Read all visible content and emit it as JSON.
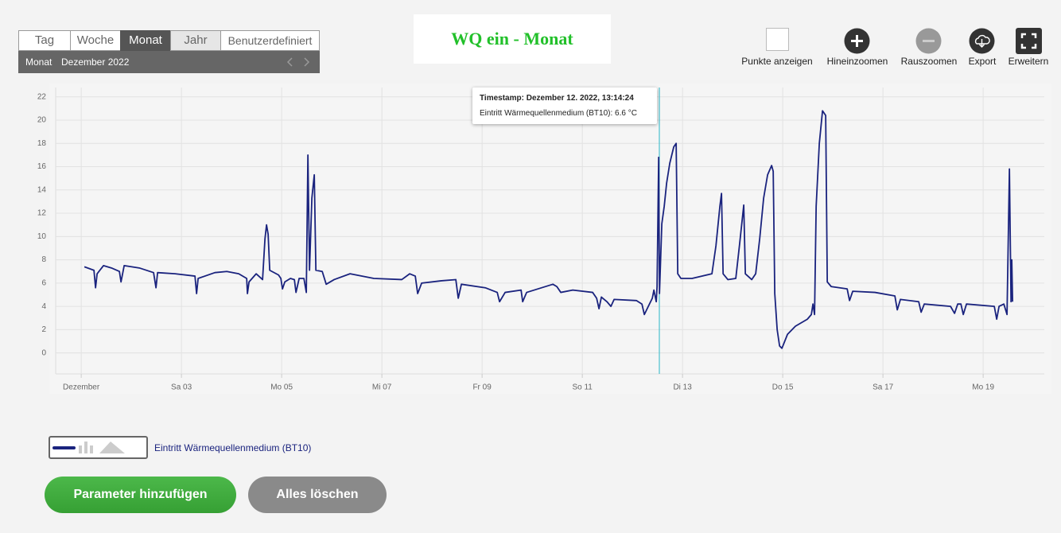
{
  "tabs": [
    "Tag",
    "Woche",
    "Monat",
    "Jahr",
    "Benutzerdefiniert"
  ],
  "period": {
    "label": "Monat",
    "value": "Dezember 2022"
  },
  "title": "WQ ein - Monat",
  "toolbar": [
    "Punkte anzeigen",
    "Hineinzoomen",
    "Rauszoomen",
    "Export",
    "Erweitern"
  ],
  "tooltip": {
    "title": "Timestamp: Dezember 12. 2022, 13:14:24",
    "text": "Eintritt Wärmequellenmedium (BT10): 6.6 °C"
  },
  "buttons": [
    "Parameter hinzufügen",
    "Alles löschen"
  ],
  "chart_data": {
    "type": "line",
    "grid": true,
    "xlim": [
      0.49,
      20.22
    ],
    "ylim": [
      -1.8,
      22.8
    ],
    "xticks": [
      {
        "value": 1,
        "label": "Dezember"
      },
      {
        "value": 3,
        "label": "Sa 03"
      },
      {
        "value": 5,
        "label": "Mo 05"
      },
      {
        "value": 7,
        "label": "Mi 07"
      },
      {
        "value": 9,
        "label": "Fr 09"
      },
      {
        "value": 11,
        "label": "So 11"
      },
      {
        "value": 13,
        "label": "Di 13"
      },
      {
        "value": 15,
        "label": "Do 15"
      },
      {
        "value": 17,
        "label": "Sa 17"
      },
      {
        "value": 19,
        "label": "Mo 19"
      }
    ],
    "yticks": [
      0,
      2,
      4,
      6,
      8,
      10,
      12,
      14,
      16,
      18,
      20,
      22
    ],
    "x": [
      1.063,
      1.254,
      1.286,
      1.317,
      1.444,
      1.603,
      1.762,
      1.794,
      1.857,
      2.159,
      2.444,
      2.492,
      2.524,
      2.873,
      3.27,
      3.302,
      3.333,
      3.667,
      3.905,
      4.143,
      4.302,
      4.317,
      4.349,
      4.492,
      4.619,
      4.667,
      4.698,
      4.73,
      4.762,
      4.937,
      4.984,
      5.016,
      5.063,
      5.175,
      5.254,
      5.286,
      5.349,
      5.444,
      5.492,
      5.524,
      5.556,
      5.603,
      5.651,
      5.683,
      5.81,
      5.889,
      6.048,
      6.365,
      6.841,
      7.397,
      7.556,
      7.667,
      7.714,
      7.794,
      8.19,
      8.476,
      8.524,
      8.587,
      9.063,
      9.302,
      9.349,
      9.46,
      9.778,
      9.81,
      9.889,
      10.413,
      10.492,
      10.571,
      10.81,
      11.206,
      11.286,
      11.333,
      11.381,
      11.492,
      11.571,
      11.635,
      12.079,
      12.19,
      12.238,
      12.317,
      12.397,
      12.429,
      12.476,
      12.492,
      12.524,
      12.54,
      12.587,
      12.635,
      12.683,
      12.746,
      12.825,
      12.873,
      12.905,
      12.968,
      13.19,
      13.587,
      13.667,
      13.746,
      13.778,
      13.81,
      13.905,
      14.063,
      14.143,
      14.222,
      14.254,
      14.381,
      14.46,
      14.54,
      14.619,
      14.698,
      14.778,
      14.81,
      14.841,
      14.889,
      14.937,
      14.984,
      15.095,
      15.254,
      15.492,
      15.571,
      15.603,
      15.635,
      15.667,
      15.73,
      15.794,
      15.857,
      15.889,
      15.968,
      16.286,
      16.333,
      16.397,
      16.841,
      17.238,
      17.286,
      17.349,
      17.714,
      17.762,
      17.825,
      18.349,
      18.429,
      18.492,
      18.556,
      18.603,
      18.667,
      19.222,
      19.27,
      19.317,
      19.413,
      19.476,
      19.524,
      19.556,
      19.571,
      19.587
    ],
    "series": [
      {
        "name": "Eintritt Wärmequellenmedium (BT10)",
        "color": "#1a237e",
        "values": [
          7.4,
          7.1,
          5.6,
          6.8,
          7.5,
          7.3,
          7.0,
          6.1,
          7.5,
          7.3,
          6.9,
          5.6,
          6.9,
          6.8,
          6.6,
          5.1,
          6.4,
          6.9,
          7.0,
          6.8,
          6.4,
          5.1,
          6.1,
          6.8,
          6.3,
          9.8,
          11.0,
          10.2,
          7.1,
          6.7,
          6.4,
          5.5,
          6.1,
          6.4,
          6.3,
          5.2,
          6.4,
          6.4,
          5.2,
          17.0,
          7.1,
          13.3,
          15.3,
          7.1,
          7.0,
          5.9,
          6.3,
          6.8,
          6.4,
          6.3,
          6.8,
          6.6,
          5.1,
          6.0,
          6.2,
          6.3,
          4.7,
          5.9,
          5.6,
          5.2,
          4.4,
          5.2,
          5.4,
          4.4,
          5.2,
          5.9,
          5.7,
          5.2,
          5.4,
          5.2,
          4.7,
          3.8,
          4.8,
          4.4,
          4.0,
          4.6,
          4.5,
          4.2,
          3.3,
          4.0,
          4.7,
          5.4,
          4.4,
          5.7,
          16.8,
          5.1,
          11.1,
          12.6,
          14.6,
          16.3,
          17.7,
          18.0,
          6.8,
          6.4,
          6.4,
          6.8,
          9.2,
          12.6,
          13.7,
          6.8,
          6.3,
          6.4,
          9.5,
          12.7,
          6.8,
          6.3,
          6.8,
          9.8,
          13.3,
          15.3,
          16.1,
          15.6,
          5.1,
          2.0,
          0.6,
          0.4,
          1.6,
          2.3,
          2.9,
          3.3,
          4.2,
          3.3,
          12.6,
          18.0,
          20.8,
          20.4,
          6.1,
          5.7,
          5.5,
          4.5,
          5.3,
          5.2,
          4.9,
          3.7,
          4.6,
          4.4,
          3.5,
          4.2,
          4.0,
          3.4,
          4.2,
          4.2,
          3.3,
          4.2,
          4.0,
          2.9,
          4.0,
          4.2,
          3.3,
          15.8,
          4.4,
          8.0,
          4.4
        ]
      }
    ]
  }
}
